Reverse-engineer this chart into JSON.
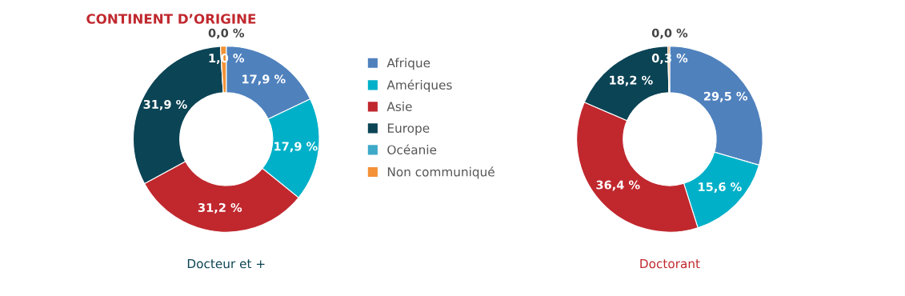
{
  "chart_data": {
    "type": "donut",
    "title": "CONTINENT D’ORIGINE",
    "legend": "right",
    "categories": [
      "Afrique",
      "Amériques",
      "Asie",
      "Europe",
      "Océanie",
      "Non communiqué"
    ],
    "colors": [
      "#4f81bd",
      "#00b0c8",
      "#c0282e",
      "#0b4455",
      "#3fa9c9",
      "#f39237"
    ],
    "series": [
      {
        "name": "Docteur et +",
        "values": [
          17.9,
          17.9,
          31.2,
          31.9,
          0.0,
          1.0
        ],
        "value_labels": [
          "17,9 %",
          "17,9 %",
          "31,2 %",
          "31,9 %",
          "0,0 %",
          "1,0 %"
        ]
      },
      {
        "name": "Doctorant",
        "values": [
          29.5,
          15.6,
          36.4,
          18.2,
          0.0,
          0.3
        ],
        "value_labels": [
          "29,5 %",
          "15,6 %",
          "36,4 %",
          "18,2 %",
          "0,0 %",
          "0,3 %"
        ]
      }
    ]
  }
}
